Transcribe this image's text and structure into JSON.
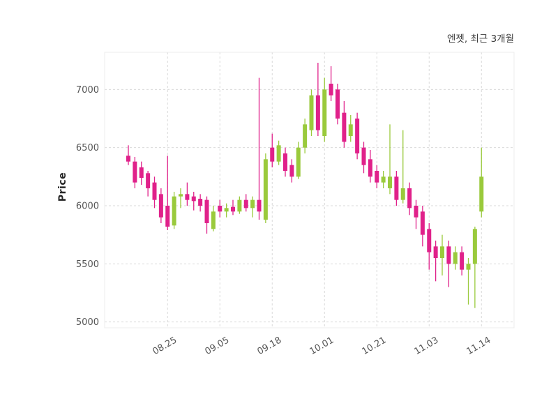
{
  "chart_data": {
    "type": "candlestick",
    "title": "엔젯, 최근 3개월",
    "ylabel": "Price",
    "ylim": [
      4950,
      7320
    ],
    "yticks": [
      5000,
      5500,
      6000,
      6500,
      7000
    ],
    "xticks": [
      {
        "index": 6,
        "label": "08.25"
      },
      {
        "index": 14,
        "label": "09.05"
      },
      {
        "index": 22,
        "label": "09.18"
      },
      {
        "index": 30,
        "label": "10.01"
      },
      {
        "index": 38,
        "label": "10.21"
      },
      {
        "index": 46,
        "label": "11.03"
      },
      {
        "index": 54,
        "label": "11.14"
      }
    ],
    "up_color": "#9aca3c",
    "down_color": "#e0218a",
    "grid": true,
    "legend": "none",
    "candles": [
      [
        6430,
        6520,
        6350,
        6380
      ],
      [
        6380,
        6420,
        6150,
        6200
      ],
      [
        6330,
        6380,
        6180,
        6240
      ],
      [
        6280,
        6300,
        6080,
        6150
      ],
      [
        6200,
        6250,
        5980,
        6050
      ],
      [
        6100,
        6150,
        5850,
        5900
      ],
      [
        6000,
        6430,
        5790,
        5820
      ],
      [
        5830,
        6120,
        5800,
        6080
      ],
      [
        6080,
        6150,
        5980,
        6100
      ],
      [
        6100,
        6200,
        6000,
        6050
      ],
      [
        6080,
        6120,
        5960,
        6040
      ],
      [
        6060,
        6100,
        5950,
        6000
      ],
      [
        6050,
        6080,
        5760,
        5850
      ],
      [
        5800,
        6000,
        5780,
        5950
      ],
      [
        6000,
        6050,
        5900,
        5950
      ],
      [
        5950,
        6020,
        5900,
        5980
      ],
      [
        5990,
        6050,
        5920,
        5950
      ],
      [
        5950,
        6080,
        5930,
        6050
      ],
      [
        6050,
        6100,
        5950,
        5980
      ],
      [
        5980,
        6080,
        5900,
        6050
      ],
      [
        6050,
        7100,
        5880,
        5950
      ],
      [
        5880,
        6450,
        5850,
        6400
      ],
      [
        6500,
        6620,
        6330,
        6380
      ],
      [
        6380,
        6560,
        6350,
        6520
      ],
      [
        6450,
        6500,
        6250,
        6300
      ],
      [
        6350,
        6400,
        6200,
        6250
      ],
      [
        6250,
        6550,
        6230,
        6500
      ],
      [
        6500,
        6750,
        6450,
        6700
      ],
      [
        6650,
        7000,
        6600,
        6950
      ],
      [
        6950,
        7230,
        6600,
        6650
      ],
      [
        6600,
        7100,
        6550,
        7000
      ],
      [
        7050,
        7200,
        6900,
        6950
      ],
      [
        7000,
        7050,
        6700,
        6750
      ],
      [
        6800,
        6900,
        6500,
        6550
      ],
      [
        6600,
        6780,
        6550,
        6700
      ],
      [
        6750,
        6800,
        6400,
        6450
      ],
      [
        6500,
        6550,
        6280,
        6350
      ],
      [
        6400,
        6480,
        6200,
        6250
      ],
      [
        6300,
        6350,
        6150,
        6200
      ],
      [
        6200,
        6300,
        6150,
        6250
      ],
      [
        6150,
        6700,
        6100,
        6250
      ],
      [
        6250,
        6300,
        6000,
        6050
      ],
      [
        6050,
        6650,
        6020,
        6150
      ],
      [
        6150,
        6200,
        5920,
        5980
      ],
      [
        6000,
        6050,
        5800,
        5900
      ],
      [
        5950,
        6000,
        5650,
        5750
      ],
      [
        5800,
        5850,
        5450,
        5600
      ],
      [
        5650,
        5700,
        5350,
        5550
      ],
      [
        5550,
        5750,
        5400,
        5650
      ],
      [
        5650,
        5700,
        5300,
        5500
      ],
      [
        5500,
        5650,
        5450,
        5600
      ],
      [
        5600,
        5650,
        5400,
        5450
      ],
      [
        5450,
        5550,
        5150,
        5500
      ],
      [
        5500,
        5820,
        5120,
        5800
      ],
      [
        5950,
        6500,
        5900,
        6250
      ]
    ]
  }
}
